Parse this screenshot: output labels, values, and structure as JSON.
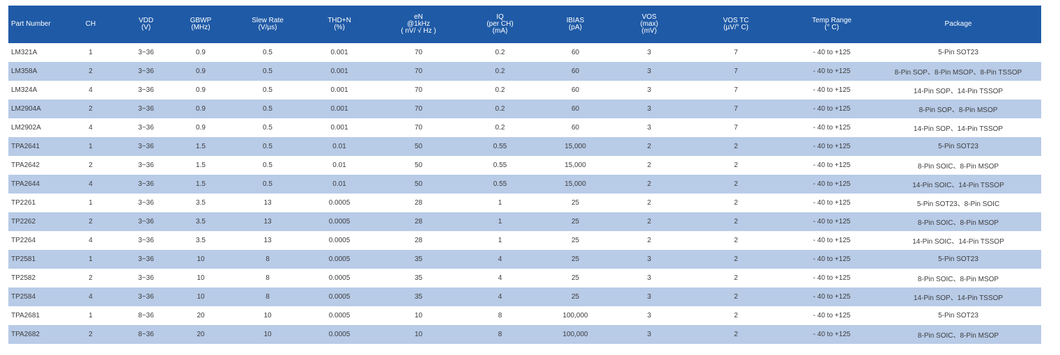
{
  "table": {
    "headers": [
      [
        "Part Number"
      ],
      [
        "CH"
      ],
      [
        "VDD",
        "(V)"
      ],
      [
        "GBWP",
        "(MHz)"
      ],
      [
        "Slew Rate",
        "(V/µs)"
      ],
      [
        "THD+N",
        "(%)"
      ],
      [
        "eN",
        "@1kHz",
        "( nV/ √ Hz )"
      ],
      [
        "IQ",
        "(per CH)",
        "(mA)"
      ],
      [
        "IBIAS",
        "(pA)"
      ],
      [
        "VOS",
        "(max)",
        "(mV)"
      ],
      [
        "VOS TC",
        "(µV/° C)"
      ],
      [
        "Temp Range",
        "(° C)"
      ],
      [
        "Package"
      ]
    ],
    "rows": [
      [
        "LM321A",
        "1",
        "3~36",
        "0.9",
        "0.5",
        "0.001",
        "70",
        "0.2",
        "60",
        "3",
        "7",
        "- 40 to +125",
        "5-Pin SOT23"
      ],
      [
        "LM358A",
        "2",
        "3~36",
        "0.9",
        "0.5",
        "0.001",
        "70",
        "0.2",
        "60",
        "3",
        "7",
        "- 40 to +125",
        "8-Pin SOP、8-Pin MSOP、8-Pin TSSOP"
      ],
      [
        "LM324A",
        "4",
        "3~36",
        "0.9",
        "0.5",
        "0.001",
        "70",
        "0.2",
        "60",
        "3",
        "7",
        "- 40 to +125",
        "14-Pin SOP、14-Pin TSSOP"
      ],
      [
        "LM2904A",
        "2",
        "3~36",
        "0.9",
        "0.5",
        "0.001",
        "70",
        "0.2",
        "60",
        "3",
        "7",
        "- 40 to +125",
        "8-Pin SOP、8-Pin MSOP"
      ],
      [
        "LM2902A",
        "4",
        "3~36",
        "0.9",
        "0.5",
        "0.001",
        "70",
        "0.2",
        "60",
        "3",
        "7",
        "- 40 to +125",
        "14-Pin SOP、14-Pin TSSOP"
      ],
      [
        "TPA2641",
        "1",
        "3~36",
        "1.5",
        "0.5",
        "0.01",
        "50",
        "0.55",
        "15,000",
        "2",
        "2",
        "- 40 to +125",
        "5-Pin SOT23"
      ],
      [
        "TPA2642",
        "2",
        "3~36",
        "1.5",
        "0.5",
        "0.01",
        "50",
        "0.55",
        "15,000",
        "2",
        "2",
        "- 40 to +125",
        "8-Pin SOIC、8-Pin MSOP"
      ],
      [
        "TPA2644",
        "4",
        "3~36",
        "1.5",
        "0.5",
        "0.01",
        "50",
        "0.55",
        "15,000",
        "2",
        "2",
        "- 40 to +125",
        "14-Pin SOIC、14-Pin TSSOP"
      ],
      [
        "TP2261",
        "1",
        "3~36",
        "3.5",
        "13",
        "0.0005",
        "28",
        "1",
        "25",
        "2",
        "2",
        "- 40 to +125",
        "5-Pin SOT23、8-Pin SOIC"
      ],
      [
        "TP2262",
        "2",
        "3~36",
        "3.5",
        "13",
        "0.0005",
        "28",
        "1",
        "25",
        "2",
        "2",
        "- 40 to +125",
        "8-Pin SOIC、8-Pin MSOP"
      ],
      [
        "TP2264",
        "4",
        "3~36",
        "3.5",
        "13",
        "0.0005",
        "28",
        "1",
        "25",
        "2",
        "2",
        "- 40 to +125",
        "14-Pin SOIC、14-Pin TSSOP"
      ],
      [
        "TP2581",
        "1",
        "3~36",
        "10",
        "8",
        "0.0005",
        "35",
        "4",
        "25",
        "3",
        "2",
        "- 40 to +125",
        "5-Pin SOT23"
      ],
      [
        "TP2582",
        "2",
        "3~36",
        "10",
        "8",
        "0.0005",
        "35",
        "4",
        "25",
        "3",
        "2",
        "- 40 to +125",
        "8-Pin SOIC、8-Pin MSOP"
      ],
      [
        "TP2584",
        "4",
        "3~36",
        "10",
        "8",
        "0.0005",
        "35",
        "4",
        "25",
        "3",
        "2",
        "- 40 to +125",
        "14-Pin SOP、14-Pin TSSOP"
      ],
      [
        "TPA2681",
        "1",
        "8~36",
        "20",
        "10",
        "0.0005",
        "10",
        "8",
        "100,000",
        "3",
        "2",
        "- 40 to +125",
        "5-Pin SOT23"
      ],
      [
        "TPA2682",
        "2",
        "8~36",
        "20",
        "10",
        "0.0005",
        "10",
        "8",
        "100,000",
        "3",
        "2",
        "- 40 to +125",
        "8-Pin SOIC、8-Pin MSOP"
      ]
    ]
  },
  "colors": {
    "header_bg": "#1f5aa6",
    "header_text": "#ffffff",
    "stripe_bg": "#b8cbe7",
    "row_bg": "#ffffff",
    "cell_text": "#3d3d3d"
  }
}
